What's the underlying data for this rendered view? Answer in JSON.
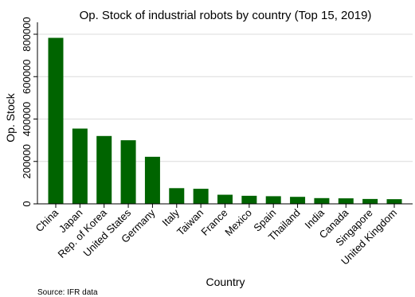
{
  "chart_data": {
    "type": "bar",
    "title": "Op. Stock of industrial robots by country (Top 15, 2019)",
    "xlabel": "Country",
    "ylabel": "Op. Stock",
    "categories": [
      "China",
      "Japan",
      "Rep. of Korea",
      "United States",
      "Germany",
      "Italy",
      "Taiwan",
      "France",
      "Mexico",
      "Spain",
      "Thailand",
      "India",
      "Canada",
      "Singapore",
      "United Kingdom"
    ],
    "values": [
      783000,
      355000,
      320000,
      300000,
      222000,
      74000,
      71000,
      43000,
      38000,
      36000,
      33000,
      27000,
      26000,
      23000,
      22000
    ],
    "yticks": [
      0,
      200000,
      400000,
      600000,
      800000
    ],
    "ytick_labels": [
      "0",
      "200000",
      "400000",
      "600000",
      "800000"
    ],
    "ylim": [
      0,
      800000
    ],
    "grid": true,
    "bar_color": "#006400",
    "grid_color": "#dcdcdc"
  },
  "source_text": "Source: IFR data"
}
